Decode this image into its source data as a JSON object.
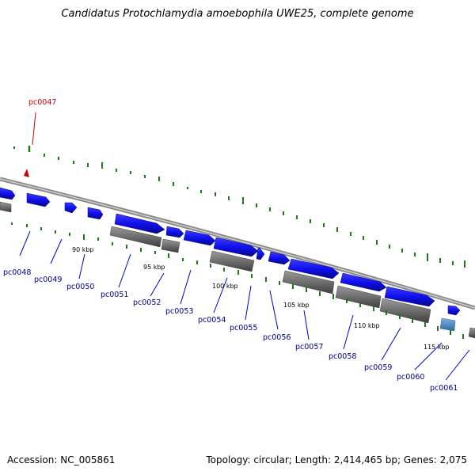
{
  "title": "Candidatus Protochlamydia amoebophila UWE25, complete genome",
  "footer": {
    "accession": "Accession: NC_005861",
    "topology": "Topology: circular; Length: 2,414,465 bp; Genes: 2,075"
  },
  "highlight_gene": "pc0047",
  "gene_labels": [
    "pc0048",
    "pc0049",
    "pc0050",
    "pc0051",
    "pc0052",
    "pc0053",
    "pc0054",
    "pc0055",
    "pc0056",
    "pc0057",
    "pc0058",
    "pc0059",
    "pc0060",
    "pc0061"
  ],
  "kbp_labels": [
    "90 kbp",
    "95 kbp",
    "100 kbp",
    "105 kbp",
    "110 kbp",
    "115 kbp"
  ],
  "colors": {
    "forward_gene": "#1010ee",
    "reverse_gene": "#7a7a7a",
    "highlight": "#cc0000",
    "gc_ticks": "#1a7a1a",
    "label": "#00008b"
  }
}
